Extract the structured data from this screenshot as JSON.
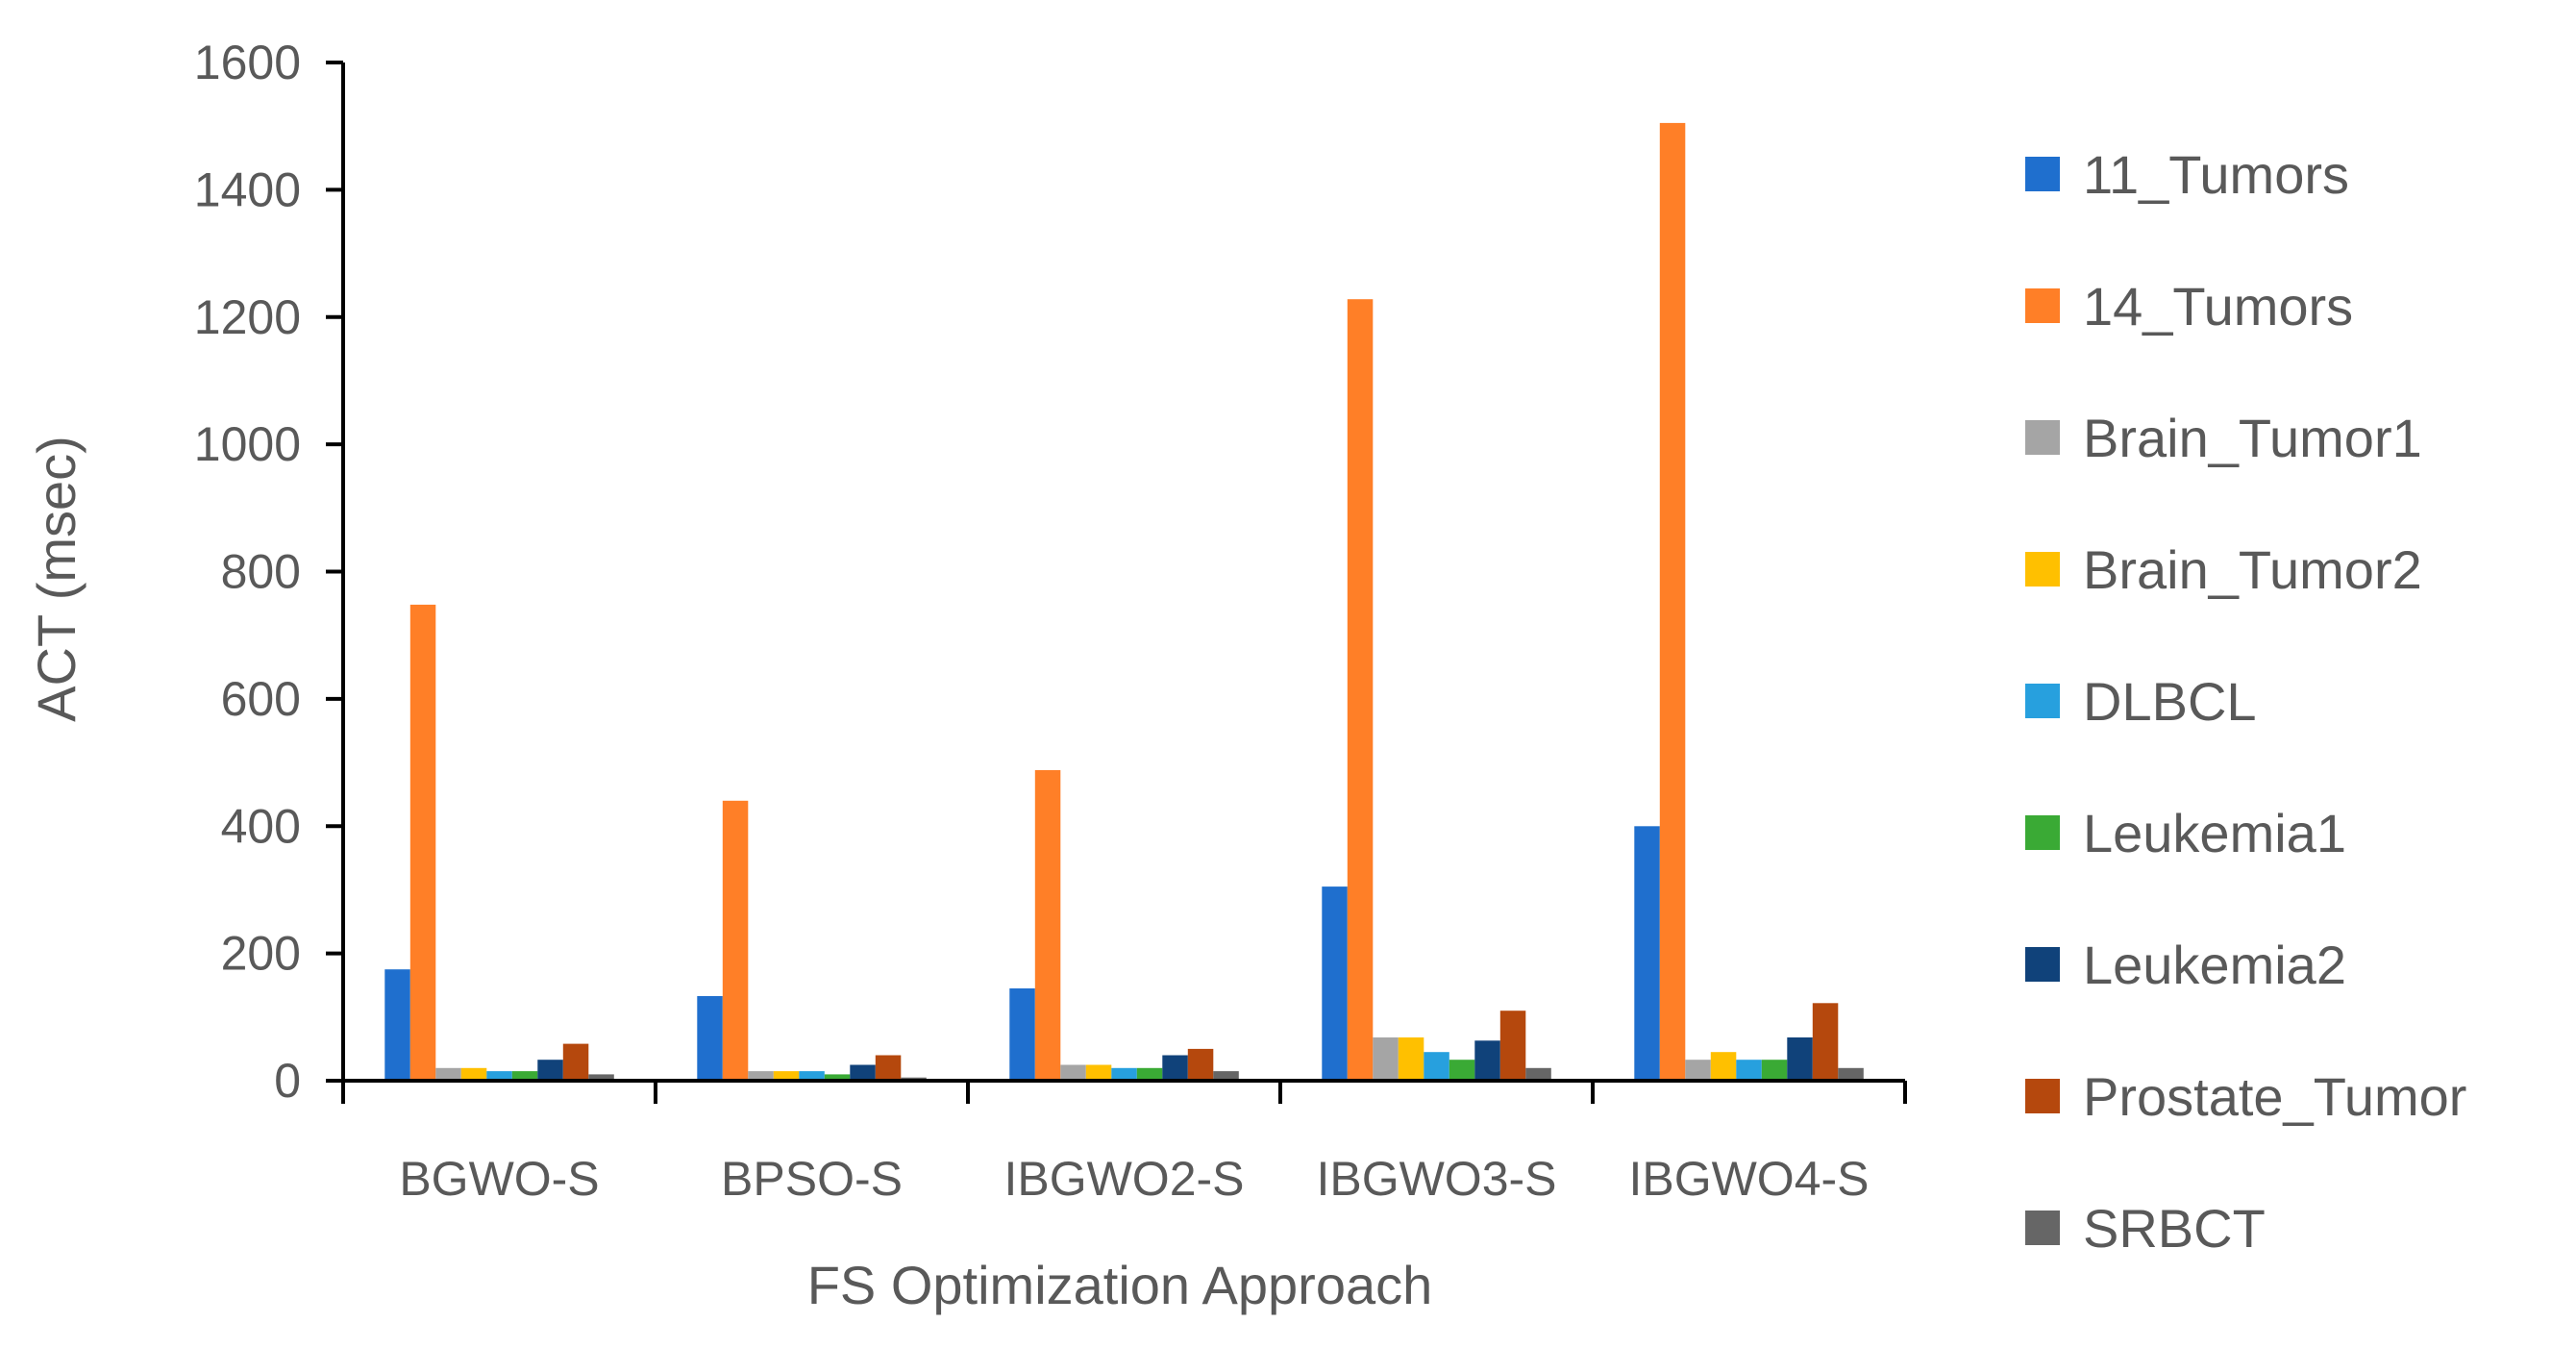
{
  "chart_data": {
    "type": "bar",
    "title": "",
    "xlabel": "FS Optimization Approach",
    "ylabel": "ACT (msec)",
    "ylim": [
      0,
      1600
    ],
    "yticks": [
      0,
      200,
      400,
      600,
      800,
      1000,
      1200,
      1400,
      1600
    ],
    "grid": false,
    "legend_position": "right",
    "categories": [
      "BGWO-S",
      "BPSO-S",
      "IBGWO2-S",
      "IBGWO3-S",
      "IBGWO4-S"
    ],
    "series": [
      {
        "name": "11_Tumors",
        "color": "#1f6fce",
        "values": [
          175,
          133,
          145,
          305,
          400
        ]
      },
      {
        "name": "14_Tumors",
        "color": "#ff7f27",
        "values": [
          748,
          440,
          488,
          1228,
          1505
        ]
      },
      {
        "name": "Brain_Tumor1",
        "color": "#a5a5a5",
        "values": [
          20,
          15,
          25,
          68,
          33
        ]
      },
      {
        "name": "Brain_Tumor2",
        "color": "#ffc000",
        "values": [
          20,
          15,
          25,
          68,
          45
        ]
      },
      {
        "name": "DLBCL",
        "color": "#27a0de",
        "values": [
          15,
          15,
          20,
          45,
          33
        ]
      },
      {
        "name": "Leukemia1",
        "color": "#3aaa35",
        "values": [
          15,
          10,
          20,
          33,
          33
        ]
      },
      {
        "name": "Leukemia2",
        "color": "#10427a",
        "values": [
          33,
          25,
          40,
          63,
          68
        ]
      },
      {
        "name": "Prostate_Tumor",
        "color": "#b5480d",
        "values": [
          58,
          40,
          50,
          110,
          122
        ]
      },
      {
        "name": "SRBCT",
        "color": "#666666",
        "values": [
          10,
          5,
          15,
          20,
          20
        ]
      }
    ]
  }
}
